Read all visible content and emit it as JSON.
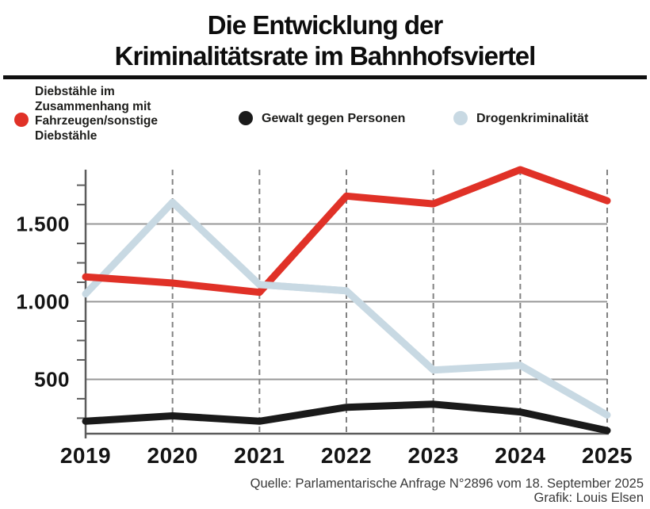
{
  "title": {
    "line1": "Die Entwicklung der",
    "line2": "Kriminalitätsrate im Bahnhofsviertel"
  },
  "legend": [
    {
      "label": "Diebstähle im Zusammenhang mit Fahrzeugen/sonstige Diebstähle",
      "color": "#e03127"
    },
    {
      "label": "Gewalt gegen Personen",
      "color": "#1a1a1a"
    },
    {
      "label": "Drogenkriminalität",
      "color": "#c8d9e3"
    }
  ],
  "footer": {
    "source": "Quelle: Parlamentarische Anfrage N°2896 vom 18. September 2025",
    "credit": "Grafik: Louis Elsen"
  },
  "chart_data": {
    "type": "line",
    "title": "Die Entwicklung der Kriminalitätsrate im Bahnhofsviertel",
    "x": [
      "2019",
      "2020",
      "2021",
      "2022",
      "2023",
      "2024",
      "2025"
    ],
    "series": [
      {
        "name": "Diebstähle im Zusammenhang mit Fahrzeugen/sonstige Diebstähle",
        "color": "#e03127",
        "values": [
          1160,
          1120,
          1060,
          1680,
          1630,
          1850,
          1650
        ]
      },
      {
        "name": "Gewalt gegen Personen",
        "color": "#1a1a1a",
        "values": [
          230,
          265,
          230,
          320,
          340,
          290,
          170
        ]
      },
      {
        "name": "Drogenkriminalität",
        "color": "#c8d9e3",
        "values": [
          1050,
          1640,
          1110,
          1070,
          560,
          590,
          270
        ]
      }
    ],
    "xlabel": "",
    "ylabel": "",
    "ylim": [
      150,
      1850
    ],
    "yticks_labeled": [
      500,
      1000,
      1500
    ],
    "ytick_labels": [
      "500",
      "1.000",
      "1.500"
    ],
    "yticks_minor": [
      250,
      375,
      625,
      750,
      875,
      1125,
      1250,
      1375,
      1625,
      1750
    ],
    "grid": "solid horizontal at labeled ticks, dashed vertical at years 2020-2025",
    "legend_position": "top",
    "colors": {
      "grid_solid": "#979797",
      "grid_dashed": "#828282",
      "axis": "#5c5c5c",
      "label": "#141414"
    }
  }
}
